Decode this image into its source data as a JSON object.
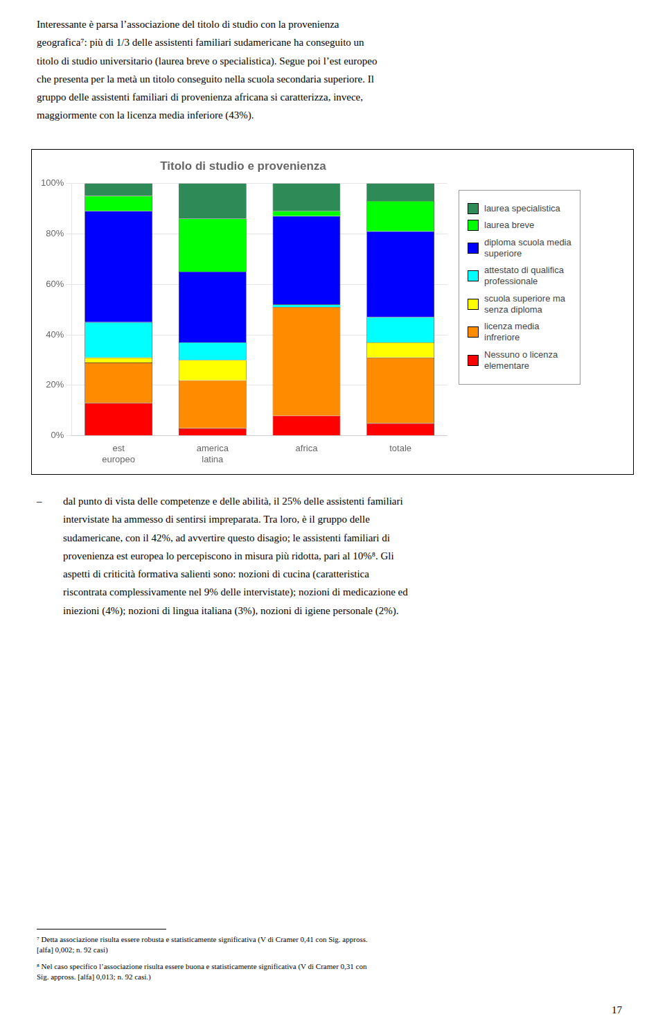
{
  "chart_data": {
    "type": "bar",
    "title": "Titolo di studio e provenienza",
    "categories": [
      "est\neuropeo",
      "america\nlatina",
      "africa",
      "totale"
    ],
    "series": [
      {
        "name": "Nessuno o licenza\nelementare",
        "color": "#FF0000",
        "values": [
          13,
          3,
          8,
          5
        ]
      },
      {
        "name": "licenza media\ninfreriore",
        "color": "#FF8C00",
        "values": [
          16,
          19,
          43,
          26
        ]
      },
      {
        "name": "scuola superiore ma\nsenza diploma",
        "color": "#FFFF00",
        "values": [
          2,
          8,
          0,
          6
        ]
      },
      {
        "name": "attestato di qualifica\nprofessionale",
        "color": "#00FFFF",
        "values": [
          14,
          7,
          1,
          10
        ]
      },
      {
        "name": "diploma scuola media\nsuperiore",
        "color": "#0000FF",
        "values": [
          44,
          28,
          35,
          34
        ]
      },
      {
        "name": "laurea breve",
        "color": "#00FF00",
        "values": [
          6,
          21,
          2,
          12
        ]
      },
      {
        "name": "laurea specialistica",
        "color": "#2E8B57",
        "values": [
          5,
          14,
          11,
          7
        ]
      }
    ],
    "stacked": true,
    "ylim": [
      0,
      100
    ],
    "yticks": [
      {
        "value": 0,
        "label": "0%"
      },
      {
        "value": 20,
        "label": "20%"
      },
      {
        "value": 40,
        "label": "40%"
      },
      {
        "value": 60,
        "label": "60%"
      },
      {
        "value": 80,
        "label": "80%"
      },
      {
        "value": 100,
        "label": "100%"
      }
    ],
    "grid": true,
    "legend": "right"
  },
  "text_top": "Interessante è parsa l’associazione del titolo di studio con la provenienza\ngeografica⁷: più di 1/3 delle assistenti familiari sudamericane ha conseguito un\ntitolo di studio universitario (laurea breve o specialistica). Segue poi l’est europeo\nche presenta per la metà un titolo conseguito nella scuola secondaria superiore. Il\ngruppo delle assistenti familiari di provenienza africana si caratterizza, invece,\nmaggiormente con la licenza media inferiore (43%).",
  "bullet": "–",
  "text_below_bullet": "dal punto di vista delle competenze e delle abilità, il 25% delle assistenti familiari\nintervistate ha ammesso di sentirsi impreparata. Tra loro, è il gruppo delle\nsudamericane, con il 42%, ad avvertire questo disagio; le assistenti familiari di\nprovenienza est europea lo percepiscono in misura più ridotta, pari al 10%⁸. Gli\naspetti di criticità formativa salienti sono: nozioni di cucina (caratteristica\nriscontrata complessivamente nel 9% delle intervistate); nozioni di medicazione ed\niniezioni (4%); nozioni di lingua italiana (3%), nozioni di igiene personale (2%).",
  "footnotes": [
    "⁷ Detta associazione risulta essere robusta e statisticamente significativa (V di Cramer 0,41 con Sig. appross.\n[alfa] 0,002; n. 92 casi)",
    "⁸ Nel caso specifico l’associazione risulta essere buona e statisticamente significativa (V di Cramer 0,31 con\nSig. appross. [alfa] 0,013; n. 92 casi.)"
  ],
  "page_number": "17"
}
